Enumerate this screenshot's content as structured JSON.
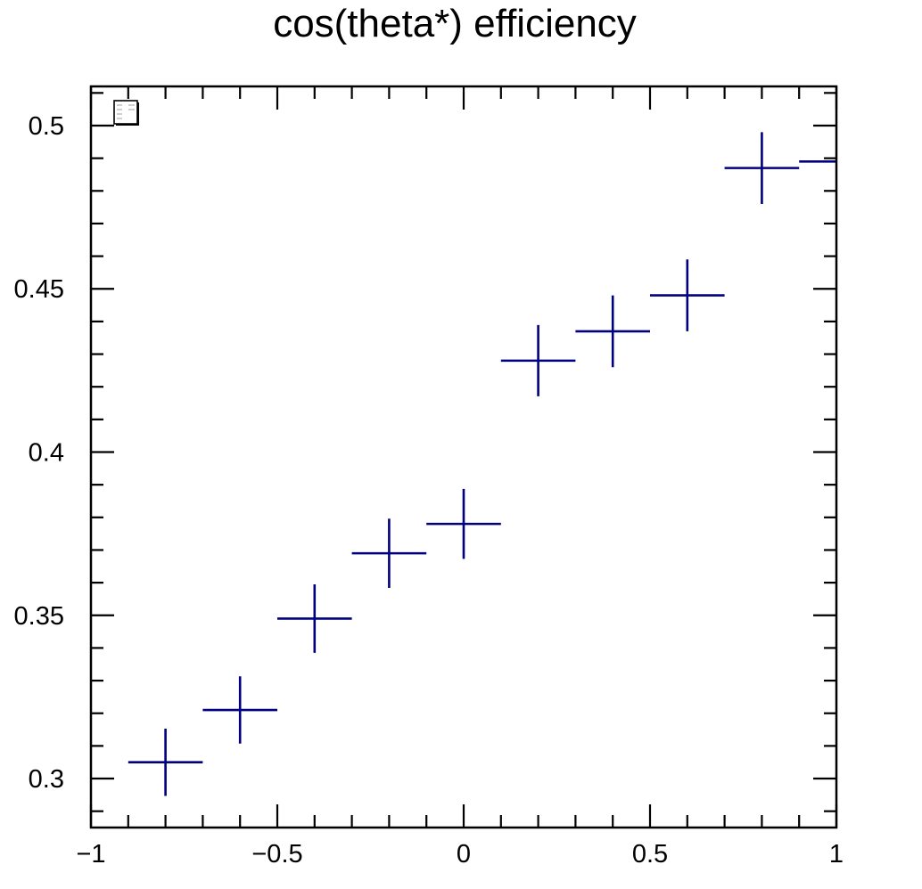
{
  "chart_data": {
    "type": "scatter",
    "title": "cos(theta*) efficiency",
    "xlabel": "",
    "ylabel": "",
    "xlim": [
      -1,
      1
    ],
    "ylim": [
      0.285,
      0.512
    ],
    "x_ticks": [
      -1,
      -0.5,
      0,
      0.5,
      1
    ],
    "x_tick_labels": [
      "−1",
      "−0.5",
      "0",
      "0.5",
      "1"
    ],
    "y_ticks": [
      0.3,
      0.35,
      0.4,
      0.45,
      0.5
    ],
    "y_tick_labels": [
      "0.3",
      "0.35",
      "0.4",
      "0.45",
      "0.5"
    ],
    "grid": false,
    "legend": "stats box top-left",
    "series": [
      {
        "color": "#000080",
        "points": [
          {
            "x": -0.8,
            "y": 0.305,
            "xerr": 0.1,
            "yerr": 0.0103
          },
          {
            "x": -0.6,
            "y": 0.321,
            "xerr": 0.1,
            "yerr": 0.0103
          },
          {
            "x": -0.4,
            "y": 0.349,
            "xerr": 0.1,
            "yerr": 0.0105
          },
          {
            "x": -0.2,
            "y": 0.369,
            "xerr": 0.1,
            "yerr": 0.0106
          },
          {
            "x": 0.0,
            "y": 0.378,
            "xerr": 0.1,
            "yerr": 0.0107
          },
          {
            "x": 0.2,
            "y": 0.428,
            "xerr": 0.1,
            "yerr": 0.0109
          },
          {
            "x": 0.4,
            "y": 0.437,
            "xerr": 0.1,
            "yerr": 0.011
          },
          {
            "x": 0.6,
            "y": 0.448,
            "xerr": 0.1,
            "yerr": 0.011
          },
          {
            "x": 0.8,
            "y": 0.487,
            "xerr": 0.1,
            "yerr": 0.011
          },
          {
            "x": 1.0,
            "y": 0.489,
            "xerr": 0.1,
            "yerr": 0.0
          }
        ]
      }
    ]
  }
}
